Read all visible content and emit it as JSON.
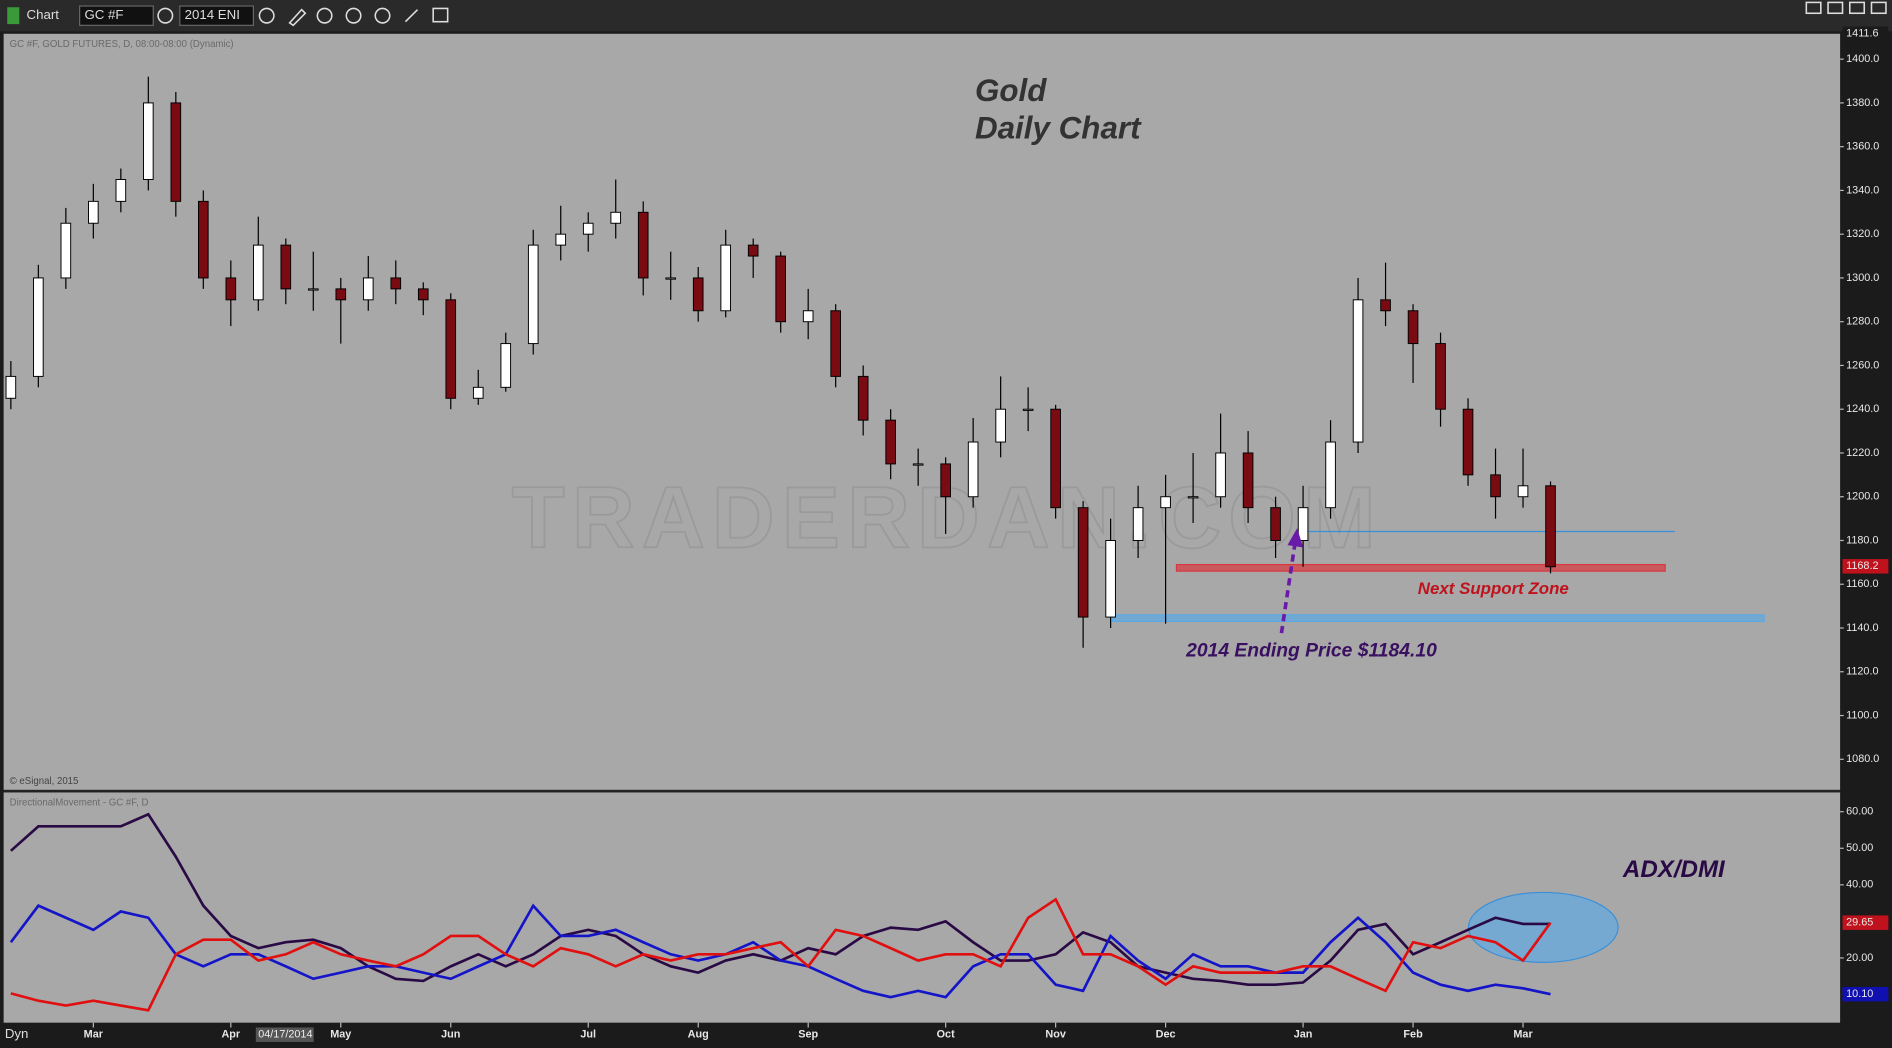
{
  "toolbar": {
    "app": "Chart",
    "symbol": "GC #F",
    "template": "2014 ENI",
    "mode": "Dyn",
    "cursor_date": "04/17/2014"
  },
  "chart_data": [
    {
      "type": "candlestick",
      "title": "Gold",
      "subtitle": "Daily Chart",
      "header": "GC #F, GOLD FUTURES, D, 08:00-08:00 (Dynamic)",
      "copyright": "© eSignal, 2015",
      "watermark": "TRADERDAN.COM",
      "annotations": [
        "Next Support Zone",
        "2014 Ending Price $1184.10"
      ],
      "categories": [
        null,
        null,
        null,
        "Mar",
        null,
        null,
        null,
        null,
        "Apr",
        null,
        null,
        null,
        "May",
        null,
        null,
        null,
        "Jun",
        null,
        null,
        null,
        null,
        "Jul",
        null,
        null,
        null,
        "Aug",
        null,
        null,
        null,
        "Sep",
        null,
        null,
        null,
        null,
        "Oct",
        null,
        null,
        null,
        "Nov",
        null,
        null,
        null,
        "Dec",
        null,
        null,
        null,
        null,
        "Jan",
        null,
        null,
        null,
        "Feb",
        null,
        null,
        null,
        "Mar",
        null
      ],
      "open": [
        1245,
        1255,
        1300,
        1325,
        1335,
        1345,
        1380,
        1335,
        1300,
        1290,
        1315,
        1295,
        1295,
        1290,
        1300,
        1295,
        1290,
        1245,
        1250,
        1270,
        1315,
        1320,
        1325,
        1330,
        1300,
        1300,
        1285,
        1315,
        1310,
        1280,
        1285,
        1255,
        1235,
        1215,
        1215,
        1200,
        1225,
        1240,
        1240,
        1195,
        1145,
        1180,
        1195,
        1200,
        1200,
        1220,
        1195,
        1180,
        1195,
        1225,
        1290,
        1285,
        1270,
        1240,
        1210,
        1200,
        1205
      ],
      "high": [
        1262,
        1306,
        1332,
        1343,
        1350,
        1392,
        1385,
        1340,
        1308,
        1328,
        1318,
        1312,
        1300,
        1310,
        1308,
        1298,
        1293,
        1258,
        1275,
        1322,
        1333,
        1330,
        1345,
        1335,
        1312,
        1305,
        1322,
        1318,
        1312,
        1295,
        1288,
        1260,
        1240,
        1222,
        1218,
        1236,
        1255,
        1250,
        1242,
        1198,
        1190,
        1205,
        1210,
        1220,
        1238,
        1230,
        1200,
        1205,
        1235,
        1300,
        1307,
        1288,
        1275,
        1245,
        1222,
        1222,
        1207
      ],
      "low": [
        1240,
        1250,
        1295,
        1318,
        1330,
        1340,
        1328,
        1295,
        1278,
        1285,
        1288,
        1285,
        1270,
        1285,
        1288,
        1283,
        1240,
        1242,
        1248,
        1265,
        1308,
        1312,
        1318,
        1292,
        1290,
        1280,
        1282,
        1300,
        1275,
        1272,
        1250,
        1228,
        1208,
        1205,
        1183,
        1195,
        1218,
        1230,
        1190,
        1131,
        1140,
        1172,
        1142,
        1188,
        1195,
        1188,
        1172,
        1168,
        1190,
        1220,
        1278,
        1252,
        1232,
        1205,
        1190,
        1195,
        1165
      ],
      "close": [
        1255,
        1300,
        1325,
        1335,
        1345,
        1380,
        1335,
        1300,
        1290,
        1315,
        1295,
        1295,
        1290,
        1300,
        1295,
        1290,
        1245,
        1250,
        1270,
        1315,
        1320,
        1325,
        1330,
        1300,
        1300,
        1285,
        1315,
        1310,
        1280,
        1285,
        1255,
        1235,
        1215,
        1215,
        1200,
        1225,
        1240,
        1240,
        1195,
        1145,
        1180,
        1195,
        1200,
        1200,
        1220,
        1195,
        1180,
        1195,
        1225,
        1290,
        1285,
        1270,
        1240,
        1210,
        1200,
        1205,
        1168
      ],
      "up_color": "#ffffff",
      "down_color": "#7a0b12",
      "ylim": [
        1066,
        1411.6
      ],
      "yticks": [
        {
          "value": 1080,
          "label": "1080.0"
        },
        {
          "value": 1100,
          "label": "1100.0"
        },
        {
          "value": 1120,
          "label": "1120.0"
        },
        {
          "value": 1140,
          "label": "1140.0"
        },
        {
          "value": 1160,
          "label": "1160.0"
        },
        {
          "value": 1180,
          "label": "1180.0"
        },
        {
          "value": 1200,
          "label": "1200.0"
        },
        {
          "value": 1220,
          "label": "1220.0"
        },
        {
          "value": 1240,
          "label": "1240.0"
        },
        {
          "value": 1260,
          "label": "1260.0"
        },
        {
          "value": 1280,
          "label": "1280.0"
        },
        {
          "value": 1300,
          "label": "1300.0"
        },
        {
          "value": 1320,
          "label": "1320.0"
        },
        {
          "value": 1340,
          "label": "1340.0"
        },
        {
          "value": 1360,
          "label": "1360.0"
        },
        {
          "value": 1380,
          "label": "1380.0"
        },
        {
          "value": 1400,
          "label": "1400.0"
        }
      ],
      "ymarkers": [
        {
          "value": 1411.6,
          "label": "1411.6",
          "color": "#1b1b1b"
        },
        {
          "value": 1168.2,
          "label": "1168.2",
          "color": "#c0121c"
        }
      ],
      "zones": [
        {
          "from": 1166,
          "to": 1169,
          "color": "#d8383f"
        },
        {
          "from": 1143,
          "to": 1146,
          "color": "#5aa9e6"
        }
      ],
      "hlines": [
        {
          "value": 1184.1,
          "color": "#3a8fd9"
        }
      ]
    },
    {
      "type": "line",
      "header": "DirectionalMovement - GC #F, D",
      "title": "ADX/DMI",
      "series": [
        {
          "color": "#2a0a45",
          "values": [
            49.3,
            56,
            56,
            56,
            56,
            59.3,
            47.7,
            34.3,
            26,
            22.7,
            24.3,
            25,
            22.7,
            17.7,
            14.3,
            13.7,
            17.7,
            21,
            17.7,
            21,
            26,
            27.7,
            26,
            21,
            17.7,
            16,
            19.3,
            21,
            19.3,
            22.7,
            21,
            26,
            28.3,
            27.7,
            30,
            24.3,
            19.3,
            19.3,
            21,
            27,
            24.3,
            17.7,
            16,
            14.3,
            13.7,
            12.7,
            12.7,
            13.3,
            19.3,
            27.7,
            29.3,
            21,
            24.3,
            27.7,
            31,
            29.3,
            29.3
          ]
        },
        {
          "color": "#1414c8",
          "values": [
            24.3,
            34.3,
            31,
            27.7,
            32.7,
            31,
            21,
            17.7,
            21,
            21,
            17.7,
            14.3,
            16,
            17.7,
            17.7,
            16,
            14.3,
            17.7,
            21,
            34.3,
            26,
            26,
            27.7,
            24.3,
            21,
            19.3,
            21,
            24.3,
            19.3,
            17.7,
            14.3,
            11,
            9.3,
            11,
            9.3,
            17.7,
            21,
            21,
            12.7,
            11,
            26,
            19.3,
            14.3,
            21,
            17.7,
            17.7,
            16,
            16,
            24.3,
            31,
            24.3,
            16,
            12.7,
            11,
            12.7,
            11.7,
            10.1
          ]
        },
        {
          "color": "#e01010",
          "values": [
            10.3,
            8.3,
            7,
            8.3,
            7,
            5.7,
            21,
            25,
            25,
            19.3,
            21,
            24.3,
            21,
            19.3,
            17.7,
            21,
            26,
            26,
            21,
            17.7,
            22.7,
            21,
            17.7,
            21,
            19.3,
            21,
            21,
            22.7,
            24.3,
            17.7,
            27.7,
            26,
            22.7,
            19.3,
            21,
            21,
            17.7,
            31,
            36,
            21,
            21,
            17.7,
            12.7,
            17.7,
            16,
            16,
            16,
            17.7,
            17.7,
            14.3,
            11,
            24.3,
            22.7,
            26,
            24.3,
            19.3,
            29.65
          ]
        }
      ],
      "ylim": [
        2.3,
        65.3
      ],
      "yticks": [
        {
          "value": 20,
          "label": "20.00"
        },
        {
          "value": 40,
          "label": "40.00"
        },
        {
          "value": 50,
          "label": "50.00"
        },
        {
          "value": 60,
          "label": "60.00"
        }
      ],
      "ymarkers": [
        {
          "value": 29.65,
          "label": "29.65",
          "color": "#c0121c"
        },
        {
          "value": 10.1,
          "label": "10.10",
          "color": "#1010b0"
        }
      ]
    }
  ]
}
